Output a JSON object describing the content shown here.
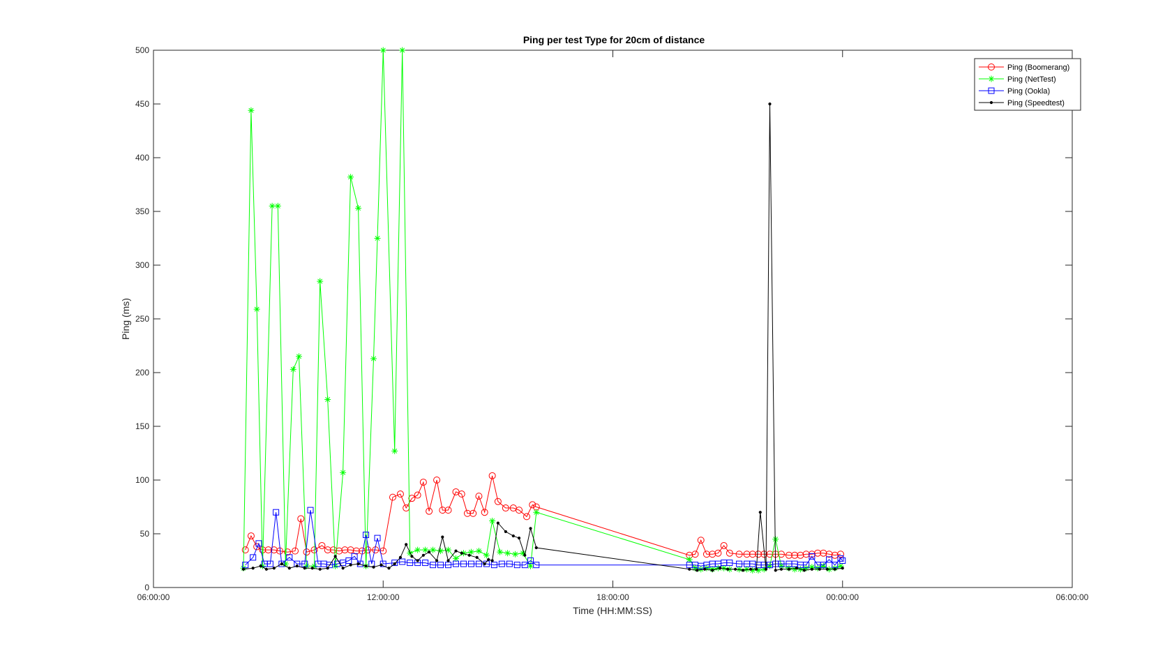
{
  "chart_data": {
    "type": "line",
    "title": "Ping per test Type for 20cm of distance",
    "xlabel": "Time (HH:MM:SS)",
    "ylabel": "Ping (ms)",
    "xlim": [
      6,
      30
    ],
    "ylim": [
      0,
      500
    ],
    "x_ticks": [
      6,
      12,
      18,
      24,
      30
    ],
    "x_tick_labels": [
      "06:00:00",
      "12:00:00",
      "18:00:00",
      "00:00:00",
      "06:00:00"
    ],
    "y_ticks": [
      0,
      50,
      100,
      150,
      200,
      250,
      300,
      350,
      400,
      450,
      500
    ],
    "y_tick_labels": [
      "0",
      "50",
      "100",
      "150",
      "200",
      "250",
      "300",
      "350",
      "400",
      "450",
      "500"
    ],
    "x_unit": "hours since 00:00 of day 1",
    "grid": false,
    "legend_position": "top-right",
    "series": [
      {
        "name": "Ping (Boomerang)",
        "color": "#ff0000",
        "marker": "circle",
        "x": [
          8.4,
          8.55,
          8.7,
          8.85,
          9.0,
          9.15,
          9.3,
          9.5,
          9.7,
          9.85,
          10.0,
          10.2,
          10.4,
          10.55,
          10.7,
          10.85,
          11.0,
          11.15,
          11.3,
          11.45,
          11.6,
          11.8,
          12.0,
          12.25,
          12.45,
          12.6,
          12.75,
          12.9,
          13.05,
          13.2,
          13.4,
          13.55,
          13.7,
          13.9,
          14.05,
          14.2,
          14.35,
          14.5,
          14.65,
          14.85,
          15.0,
          15.2,
          15.4,
          15.55,
          15.75,
          15.9,
          16.0,
          20.0,
          20.15,
          20.3,
          20.45,
          20.6,
          20.75,
          20.9,
          21.05,
          21.3,
          21.5,
          21.65,
          21.8,
          21.95,
          22.1,
          22.25,
          22.4,
          22.6,
          22.75,
          22.9,
          23.05,
          23.2,
          23.35,
          23.5,
          23.65,
          23.8,
          23.95
        ],
        "y": [
          35,
          48,
          38,
          35,
          35,
          35,
          34,
          33,
          34,
          64,
          33,
          35,
          39,
          35,
          35,
          34,
          35,
          35,
          34,
          34,
          35,
          35,
          34,
          84,
          87,
          74,
          83,
          86,
          98,
          71,
          100,
          72,
          72,
          89,
          87,
          69,
          69,
          85,
          70,
          104,
          80,
          74,
          74,
          72,
          66,
          77,
          75,
          30,
          31,
          44,
          31,
          31,
          32,
          39,
          32,
          31,
          31,
          31,
          31,
          31,
          31,
          31,
          31,
          30,
          30,
          30,
          31,
          31,
          32,
          32,
          31,
          30,
          31
        ]
      },
      {
        "name": "Ping (NetTest)",
        "color": "#00ff00",
        "marker": "asterisk",
        "x": [
          8.35,
          8.55,
          8.7,
          8.85,
          9.1,
          9.25,
          9.45,
          9.65,
          9.8,
          10.0,
          10.2,
          10.35,
          10.55,
          10.75,
          10.95,
          11.15,
          11.35,
          11.55,
          11.75,
          11.85,
          12.0,
          12.3,
          12.5,
          12.7,
          12.9,
          13.1,
          13.3,
          13.5,
          13.7,
          13.9,
          14.1,
          14.3,
          14.5,
          14.7,
          14.85,
          15.05,
          15.25,
          15.45,
          15.65,
          15.85,
          16.0,
          20.0,
          20.15,
          20.3,
          20.45,
          20.6,
          20.75,
          20.9,
          21.05,
          21.3,
          21.5,
          21.65,
          21.8,
          21.95,
          22.1,
          22.25,
          22.4,
          22.6,
          22.75,
          22.9,
          23.05,
          23.2,
          23.35,
          23.5,
          23.65,
          23.8,
          23.95
        ],
        "y": [
          18,
          444,
          259,
          20,
          355,
          355,
          22,
          203,
          215,
          20,
          20,
          285,
          175,
          20,
          107,
          382,
          353,
          20,
          213,
          325,
          500,
          127,
          500,
          32,
          35,
          35,
          35,
          34,
          35,
          27,
          32,
          33,
          34,
          30,
          62,
          33,
          32,
          31,
          32,
          20,
          70,
          26,
          18,
          17,
          18,
          17,
          18,
          18,
          17,
          17,
          17,
          16,
          16,
          17,
          20,
          45,
          20,
          18,
          17,
          17,
          18,
          19,
          18,
          20,
          17,
          18,
          20
        ]
      },
      {
        "name": "Ping (Ookla)",
        "color": "#0000ff",
        "marker": "square",
        "x": [
          8.4,
          8.6,
          8.75,
          8.9,
          9.05,
          9.2,
          9.35,
          9.55,
          9.75,
          9.95,
          10.1,
          10.3,
          10.45,
          10.6,
          10.8,
          10.95,
          11.1,
          11.25,
          11.4,
          11.55,
          11.7,
          11.85,
          12.0,
          12.3,
          12.5,
          12.7,
          12.9,
          13.1,
          13.3,
          13.5,
          13.7,
          13.9,
          14.1,
          14.3,
          14.5,
          14.7,
          14.9,
          15.1,
          15.3,
          15.5,
          15.7,
          15.85,
          16.0,
          20.0,
          20.15,
          20.3,
          20.45,
          20.6,
          20.75,
          20.9,
          21.05,
          21.3,
          21.5,
          21.65,
          21.8,
          21.95,
          22.1,
          22.25,
          22.4,
          22.6,
          22.75,
          22.9,
          23.05,
          23.2,
          23.35,
          23.5,
          23.65,
          23.8,
          23.95,
          24.0
        ],
        "y": [
          21,
          28,
          41,
          22,
          22,
          70,
          22,
          28,
          22,
          22,
          72,
          22,
          22,
          21,
          22,
          23,
          25,
          29,
          22,
          49,
          22,
          46,
          22,
          23,
          24,
          23,
          23,
          23,
          21,
          21,
          21,
          22,
          22,
          22,
          22,
          22,
          21,
          22,
          22,
          21,
          21,
          25,
          21,
          21,
          21,
          20,
          21,
          22,
          22,
          23,
          23,
          22,
          22,
          22,
          21,
          21,
          21,
          22,
          22,
          22,
          22,
          21,
          21,
          29,
          21,
          21,
          26,
          21,
          27,
          25
        ]
      },
      {
        "name": "Ping (Speedtest)",
        "color": "#000000",
        "marker": "dot",
        "x": [
          8.35,
          8.6,
          8.8,
          8.95,
          9.15,
          9.35,
          9.55,
          9.75,
          9.95,
          10.15,
          10.35,
          10.55,
          10.75,
          10.95,
          11.15,
          11.35,
          11.55,
          11.75,
          11.95,
          12.15,
          12.3,
          12.45,
          12.6,
          12.75,
          12.9,
          13.05,
          13.2,
          13.4,
          13.55,
          13.7,
          13.9,
          14.05,
          14.25,
          14.45,
          14.65,
          14.75,
          14.85,
          15.0,
          15.2,
          15.4,
          15.55,
          15.7,
          15.85,
          16.0,
          20.0,
          20.2,
          20.4,
          20.6,
          20.8,
          21.0,
          21.2,
          21.4,
          21.6,
          21.75,
          21.85,
          22.0,
          22.1,
          22.25,
          22.4,
          22.6,
          22.8,
          23.0,
          23.2,
          23.4,
          23.6,
          23.8,
          24.0
        ],
        "y": [
          17,
          18,
          20,
          17,
          18,
          22,
          18,
          20,
          18,
          18,
          17,
          18,
          29,
          18,
          21,
          22,
          20,
          19,
          21,
          18,
          22,
          28,
          40,
          29,
          25,
          30,
          33,
          25,
          47,
          25,
          34,
          32,
          30,
          28,
          22,
          26,
          25,
          60,
          52,
          48,
          46,
          30,
          55,
          37,
          17,
          16,
          17,
          16,
          18,
          17,
          17,
          16,
          17,
          17,
          70,
          17,
          450,
          16,
          17,
          17,
          18,
          16,
          17,
          17,
          17,
          17,
          18
        ]
      }
    ]
  }
}
